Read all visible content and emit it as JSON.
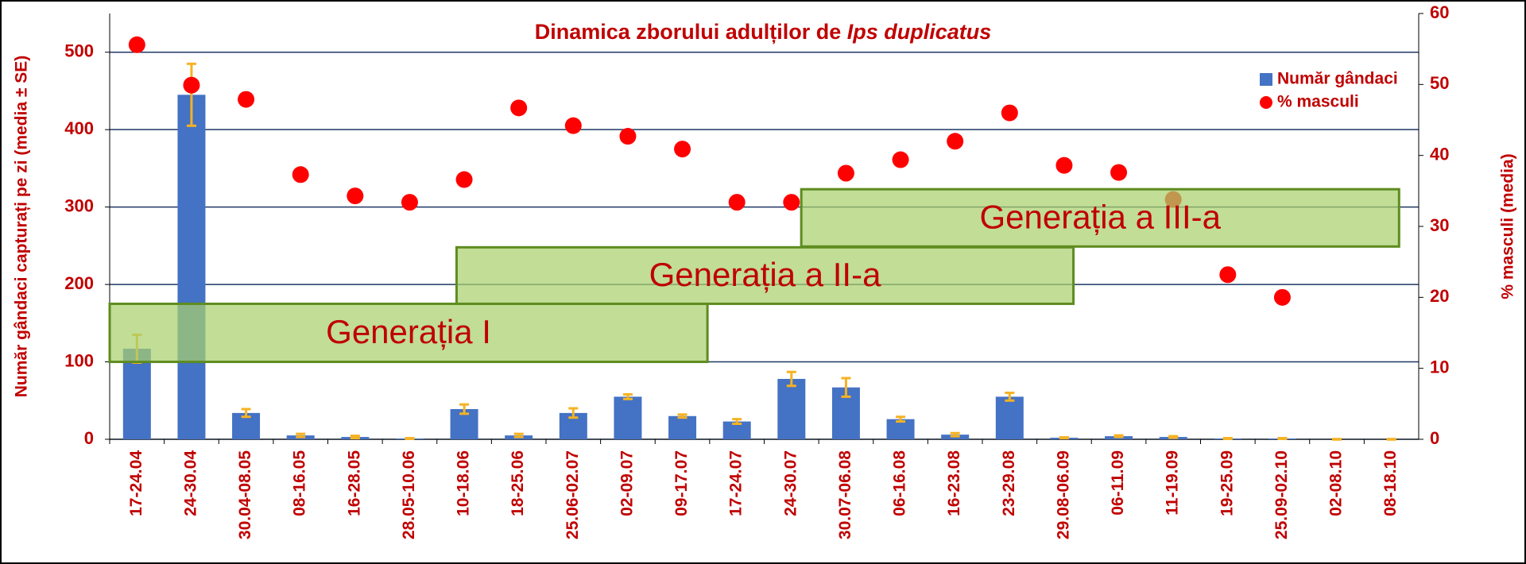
{
  "chart_data": {
    "type": "bar",
    "title": [
      "Dinamica zborului adulților de ",
      "Ips duplicatus"
    ],
    "ylabel": "Număr gândaci capturați pe zi (media ± SE)",
    "y2label": "% masculi (media)",
    "categories": [
      "17-24.04",
      "24-30.04",
      "30.04-08.05",
      "08-16.05",
      "16-28.05",
      "28.05-10.06",
      "10-18.06",
      "18-25.06",
      "25.06-02.07",
      "02-09.07",
      "09-17.07",
      "17-24.07",
      "24-30.07",
      "30.07-06.08",
      "06-16.08",
      "16-23.08",
      "23-29.08",
      "29.08-06.09",
      "06-11.09",
      "11-19.09",
      "19-25.09",
      "25.09-02.10",
      "02-08.10",
      "08-18.10"
    ],
    "series": [
      {
        "name": "Număr gândaci",
        "type": "bar",
        "color": "#4472c4",
        "error_color": "#f5b223",
        "values": [
          117,
          445,
          34,
          5,
          3,
          1,
          39,
          5,
          34,
          55,
          30,
          23,
          78,
          67,
          26,
          6,
          55,
          2,
          4,
          3,
          1,
          1,
          0,
          0
        ],
        "errors": [
          18,
          40,
          5,
          2,
          1.5,
          0.5,
          6,
          2,
          6,
          3,
          2,
          3,
          9,
          12,
          3,
          2,
          5,
          0.5,
          1,
          1,
          0.5,
          0.5,
          0.3,
          0.3
        ]
      },
      {
        "name": "% masculi",
        "type": "scatter",
        "axis": "y2",
        "color": "#ff0000",
        "values": [
          55.6,
          49.9,
          47.9,
          37.3,
          34.3,
          33.4,
          36.6,
          46.7,
          44.2,
          42.7,
          40.9,
          33.4,
          33.4,
          37.5,
          39.4,
          42,
          46,
          38.6,
          37.6,
          33.8,
          23.2,
          20,
          null,
          null
        ]
      }
    ],
    "ylim": [
      0,
      550
    ],
    "yticks": [
      0,
      100,
      200,
      300,
      400,
      500
    ],
    "y2lim": [
      0,
      60
    ],
    "y2ticks": [
      0,
      10,
      20,
      30,
      40,
      50,
      60
    ],
    "grid": true,
    "legend": "upper right",
    "annotations": [
      "Generația I",
      "Generația a II-a",
      "Generația a III-a"
    ]
  }
}
